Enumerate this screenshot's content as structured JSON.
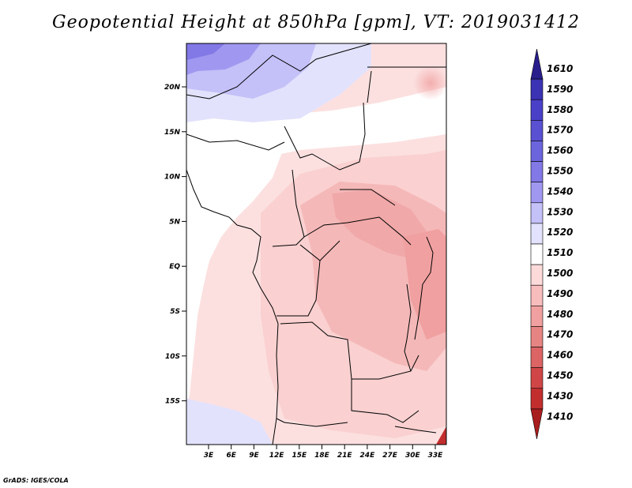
{
  "title": "Geopotential Height at 850hPa [gpm], VT: 2019031412",
  "credit": "GrADS: IGES/COLA",
  "lat_labels": [
    "20N",
    "15N",
    "10N",
    "5N",
    "EQ",
    "5S",
    "10S",
    "15S"
  ],
  "lon_labels": [
    "3E",
    "6E",
    "9E",
    "12E",
    "15E",
    "18E",
    "21E",
    "24E",
    "27E",
    "30E",
    "33E"
  ],
  "colorbar": {
    "labels": [
      "1610",
      "1590",
      "1580",
      "1570",
      "1560",
      "1550",
      "1540",
      "1530",
      "1520",
      "1510",
      "1500",
      "1490",
      "1480",
      "1470",
      "1460",
      "1450",
      "1430",
      "1410"
    ],
    "colors": [
      "#2a1e8c",
      "#3c32b4",
      "#4a40c8",
      "#5a50d2",
      "#6c64dc",
      "#8278e6",
      "#a098f0",
      "#c4c0f8",
      "#e2e2fc",
      "#ffffff",
      "#fcdada",
      "#f7bcbc",
      "#f0a0a0",
      "#e68484",
      "#dc6464",
      "#d04646",
      "#c22e2e",
      "#a81e1e"
    ]
  }
}
